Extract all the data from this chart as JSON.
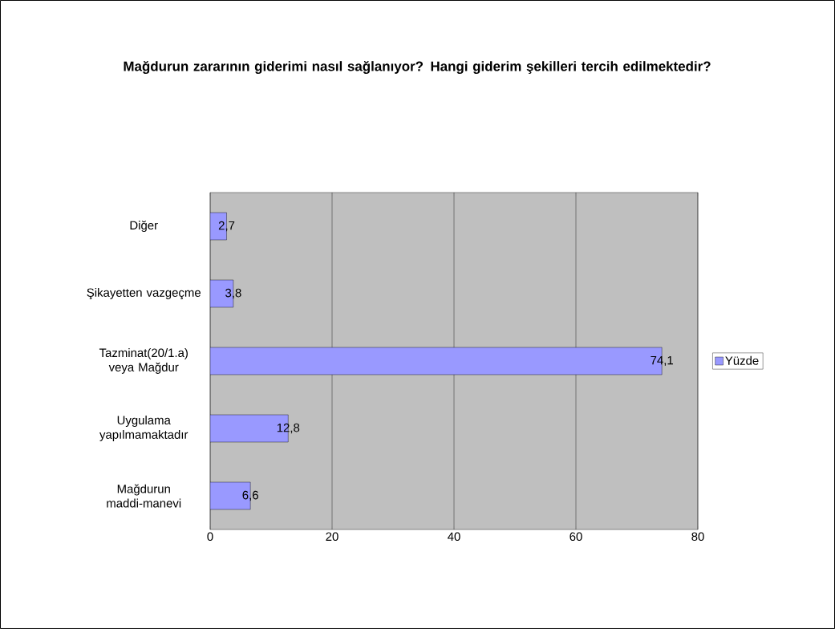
{
  "chart_data": {
    "type": "bar",
    "orientation": "horizontal",
    "title": "Mağdurun zararının giderimi nasıl sağlanıyor? Hangi giderim şekilleri tercih edilmektedir?",
    "categories": [
      "Diğer",
      "Şikayetten vazgeçme",
      "Tazminat(20/1.a) veya Mağdur",
      "Uygulama yapılmamaktadır",
      "Mağdurun maddi-manevi"
    ],
    "series": [
      {
        "name": "Yüzde",
        "color": "#9999ff",
        "values": [
          2.7,
          3.8,
          74.1,
          12.8,
          6.6
        ],
        "value_labels": [
          "2,7",
          "3,8",
          "74,1",
          "12,8",
          "6,6"
        ]
      }
    ],
    "xlim": [
      0,
      80
    ],
    "xticks": [
      0,
      20,
      40,
      60,
      80
    ],
    "grid": "x",
    "legend": "right"
  }
}
